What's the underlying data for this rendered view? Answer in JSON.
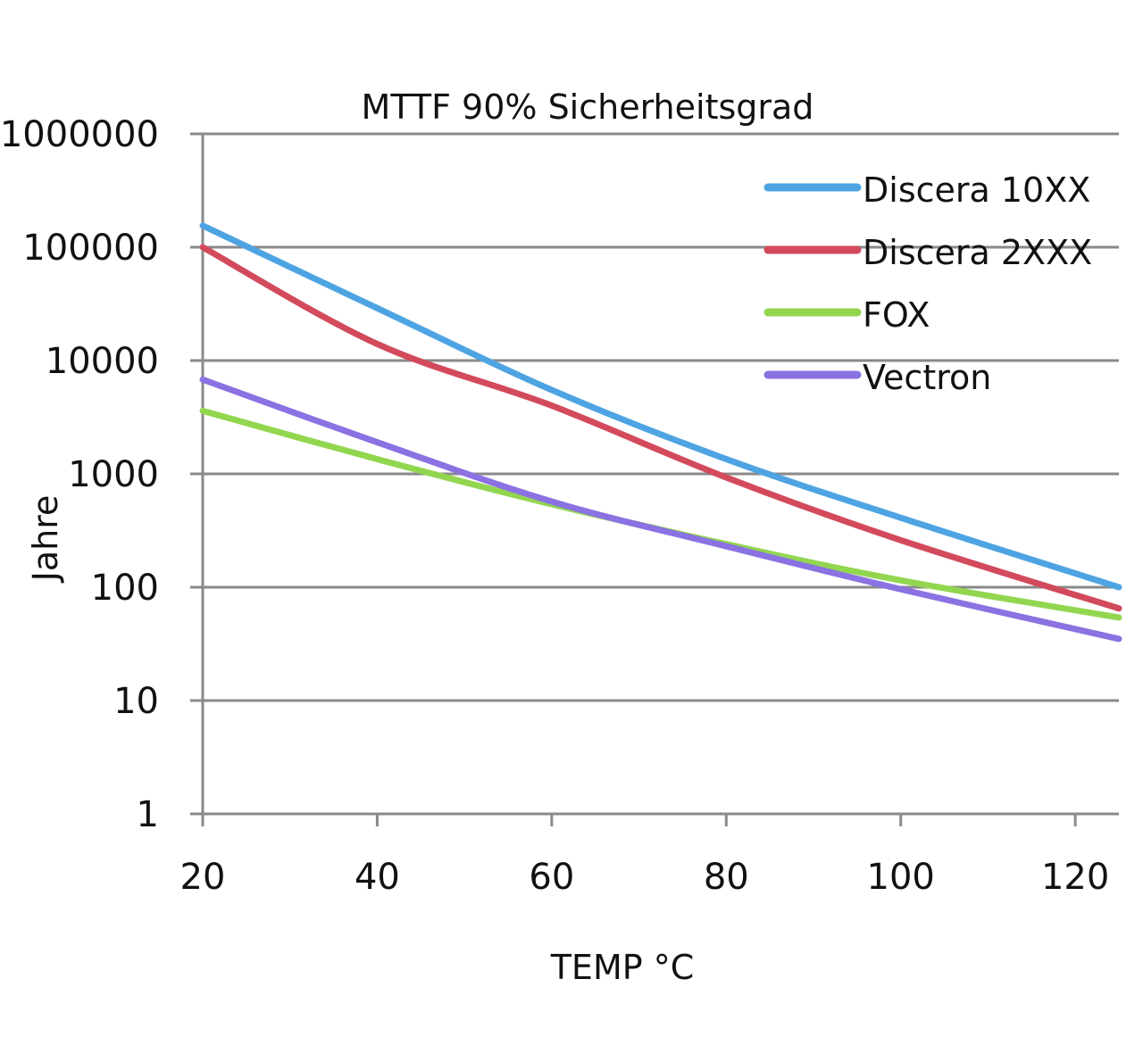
{
  "chart_data": {
    "type": "line",
    "title": "MTTF 90% Sicherheitsgrad",
    "xlabel": "TEMP °C",
    "ylabel": "Jahre",
    "xlim": [
      20,
      125
    ],
    "ylim": [
      1,
      1000000
    ],
    "yscale": "log",
    "grid": true,
    "legend_position": "top-right",
    "x_ticks": [
      20,
      40,
      60,
      80,
      100,
      120
    ],
    "x_tick_labels": [
      "20",
      "40",
      "60",
      "80",
      "100",
      "120"
    ],
    "y_ticks": [
      1,
      10,
      100,
      1000,
      10000,
      100000,
      1000000
    ],
    "y_tick_labels": [
      "1",
      "10",
      "100",
      "1000",
      "10000",
      "100000",
      "1000000"
    ],
    "x": [
      20,
      40,
      60,
      80,
      100,
      125
    ],
    "series": [
      {
        "name": "Discera 10XX",
        "color": "#4ea4e2",
        "values": [
          155000,
          29000,
          5500,
          1350,
          410,
          100
        ]
      },
      {
        "name": "Discera 2XXX",
        "color": "#d24a5c",
        "values": [
          100000,
          14000,
          4000,
          930,
          260,
          65
        ]
      },
      {
        "name": "FOX",
        "color": "#92d650",
        "values": [
          3600,
          1350,
          540,
          240,
          115,
          54
        ]
      },
      {
        "name": "Vectron",
        "color": "#8b72e2",
        "values": [
          6800,
          1900,
          570,
          230,
          96,
          35
        ]
      }
    ]
  }
}
